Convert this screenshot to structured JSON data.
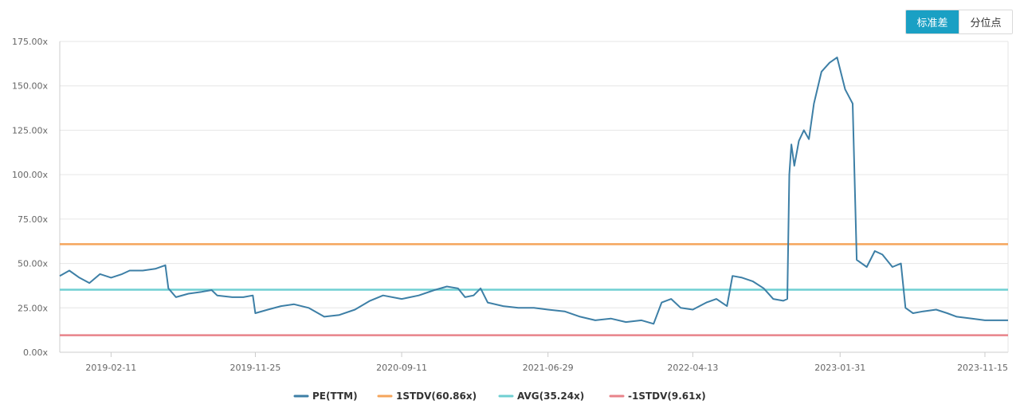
{
  "controls": {
    "toggle_std": "标准差",
    "toggle_pct": "分位点"
  },
  "colors": {
    "pe": "#3d7fa6",
    "plus_std": "#f5a55b",
    "avg": "#6fcfd2",
    "minus_std": "#e8838a",
    "grid": "#e6e6e6",
    "axis": "#cccccc",
    "active_toggle": "#1aa0c4"
  },
  "chart_data": {
    "type": "line",
    "title": "",
    "xlabel": "",
    "ylabel": "",
    "ylim": [
      0,
      175
    ],
    "y_ticks": [
      "0.00x",
      "25.00x",
      "50.00x",
      "75.00x",
      "100.00x",
      "125.00x",
      "150.00x",
      "175.00x"
    ],
    "x_range": [
      "2018-11-01",
      "2023-12-31"
    ],
    "x_ticks": [
      "2019-02-11",
      "2019-11-25",
      "2020-09-11",
      "2021-06-29",
      "2022-04-13",
      "2023-01-31",
      "2023-11-15"
    ],
    "grid": true,
    "legend_position": "bottom",
    "series": [
      {
        "name": "PE(TTM)",
        "color": "#3d7fa6",
        "points": [
          [
            "2018-11-01",
            43
          ],
          [
            "2018-11-20",
            46
          ],
          [
            "2018-12-10",
            42
          ],
          [
            "2018-12-30",
            39
          ],
          [
            "2019-01-20",
            44
          ],
          [
            "2019-02-11",
            42
          ],
          [
            "2019-03-05",
            44
          ],
          [
            "2019-03-20",
            46
          ],
          [
            "2019-04-15",
            46
          ],
          [
            "2019-05-10",
            47
          ],
          [
            "2019-05-30",
            49
          ],
          [
            "2019-06-05",
            36
          ],
          [
            "2019-06-20",
            31
          ],
          [
            "2019-07-15",
            33
          ],
          [
            "2019-08-10",
            34
          ],
          [
            "2019-08-30",
            35
          ],
          [
            "2019-09-10",
            32
          ],
          [
            "2019-10-10",
            31
          ],
          [
            "2019-11-01",
            31
          ],
          [
            "2019-11-20",
            32
          ],
          [
            "2019-11-25",
            22
          ],
          [
            "2019-12-20",
            24
          ],
          [
            "2020-01-15",
            26
          ],
          [
            "2020-02-10",
            27
          ],
          [
            "2020-03-10",
            25
          ],
          [
            "2020-04-10",
            20
          ],
          [
            "2020-05-10",
            21
          ],
          [
            "2020-06-10",
            24
          ],
          [
            "2020-07-10",
            29
          ],
          [
            "2020-08-05",
            32
          ],
          [
            "2020-09-11",
            30
          ],
          [
            "2020-10-15",
            32
          ],
          [
            "2020-11-15",
            35
          ],
          [
            "2020-12-10",
            37
          ],
          [
            "2021-01-01",
            36
          ],
          [
            "2021-01-15",
            31
          ],
          [
            "2021-02-01",
            32
          ],
          [
            "2021-02-15",
            36
          ],
          [
            "2021-03-01",
            28
          ],
          [
            "2021-04-01",
            26
          ],
          [
            "2021-05-01",
            25
          ],
          [
            "2021-06-01",
            25
          ],
          [
            "2021-06-29",
            24
          ],
          [
            "2021-08-01",
            23
          ],
          [
            "2021-09-01",
            20
          ],
          [
            "2021-10-01",
            18
          ],
          [
            "2021-11-01",
            19
          ],
          [
            "2021-12-01",
            17
          ],
          [
            "2022-01-01",
            18
          ],
          [
            "2022-01-25",
            16
          ],
          [
            "2022-02-10",
            28
          ],
          [
            "2022-03-01",
            30
          ],
          [
            "2022-03-20",
            25
          ],
          [
            "2022-04-13",
            24
          ],
          [
            "2022-05-10",
            28
          ],
          [
            "2022-05-30",
            30
          ],
          [
            "2022-06-20",
            26
          ],
          [
            "2022-07-01",
            43
          ],
          [
            "2022-07-20",
            42
          ],
          [
            "2022-08-10",
            40
          ],
          [
            "2022-09-01",
            36
          ],
          [
            "2022-09-20",
            30
          ],
          [
            "2022-10-10",
            29
          ],
          [
            "2022-10-18",
            30
          ],
          [
            "2022-10-22",
            100
          ],
          [
            "2022-10-26",
            117
          ],
          [
            "2022-11-01",
            105
          ],
          [
            "2022-11-10",
            119
          ],
          [
            "2022-11-20",
            125
          ],
          [
            "2022-11-30",
            120
          ],
          [
            "2022-12-10",
            140
          ],
          [
            "2022-12-25",
            158
          ],
          [
            "2023-01-10",
            163
          ],
          [
            "2023-01-25",
            166
          ],
          [
            "2023-02-10",
            148
          ],
          [
            "2023-02-25",
            140
          ],
          [
            "2023-03-05",
            52
          ],
          [
            "2023-03-25",
            48
          ],
          [
            "2023-04-10",
            57
          ],
          [
            "2023-04-25",
            55
          ],
          [
            "2023-05-15",
            48
          ],
          [
            "2023-06-01",
            50
          ],
          [
            "2023-06-10",
            25
          ],
          [
            "2023-06-25",
            22
          ],
          [
            "2023-07-15",
            23
          ],
          [
            "2023-08-10",
            24
          ],
          [
            "2023-09-01",
            22
          ],
          [
            "2023-09-20",
            20
          ],
          [
            "2023-10-20",
            19
          ],
          [
            "2023-11-15",
            18
          ],
          [
            "2023-12-31",
            18
          ]
        ]
      },
      {
        "name": "1STDV(60.86x)",
        "color": "#f5a55b",
        "value": 60.86
      },
      {
        "name": "AVG(35.24x)",
        "color": "#6fcfd2",
        "value": 35.24
      },
      {
        "name": "-1STDV(9.61x)",
        "color": "#e8838a",
        "value": 9.61
      }
    ]
  }
}
